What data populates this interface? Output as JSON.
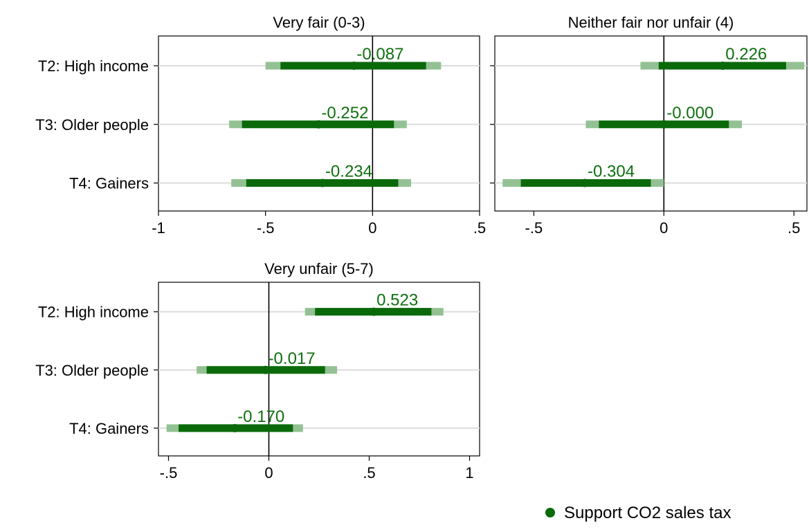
{
  "chart_data": {
    "type": "coefficient-plot",
    "categories": [
      "T2: High income",
      "T3: Older people",
      "T4: Gainers"
    ],
    "colors": {
      "point": "#0a6a0a",
      "ci_inner": "#0a6a0a",
      "ci_outer": "#93c193",
      "label": "#0f700f",
      "zero_line": "#000000",
      "grid": "#dcdcdc"
    },
    "legend": {
      "label": "Support CO2 sales tax",
      "position": "bottom-right"
    },
    "panels": [
      {
        "title": "Very fair (0-3)",
        "xlim": [
          -1,
          0.5
        ],
        "xticks": [
          -1,
          -0.5,
          0,
          0.5
        ],
        "xtick_labels": [
          "-1",
          "-.5",
          "0",
          ".5"
        ],
        "points": [
          {
            "category": "T2: High income",
            "estimate": -0.087,
            "label": "-0.087",
            "ci_inner": [
              -0.43,
              0.25
            ],
            "ci_outer": [
              -0.5,
              0.32
            ]
          },
          {
            "category": "T3: Older people",
            "estimate": -0.252,
            "label": "-0.252",
            "ci_inner": [
              -0.61,
              0.1
            ],
            "ci_outer": [
              -0.67,
              0.16
            ]
          },
          {
            "category": "T4: Gainers",
            "estimate": -0.234,
            "label": "-0.234",
            "ci_inner": [
              -0.59,
              0.12
            ],
            "ci_outer": [
              -0.66,
              0.18
            ]
          }
        ]
      },
      {
        "title": "Neither fair nor unfair (4)",
        "xlim": [
          -0.65,
          0.55
        ],
        "xticks": [
          -0.5,
          0,
          0.5
        ],
        "xtick_labels": [
          "-.5",
          "0",
          ".5"
        ],
        "points": [
          {
            "category": "T2: High income",
            "estimate": 0.226,
            "label": "0.226",
            "ci_inner": [
              -0.02,
              0.47
            ],
            "ci_outer": [
              -0.09,
              0.54
            ]
          },
          {
            "category": "T3: Older people",
            "estimate": -0.0,
            "label": "-0.000",
            "ci_inner": [
              -0.25,
              0.25
            ],
            "ci_outer": [
              -0.3,
              0.3
            ]
          },
          {
            "category": "T4: Gainers",
            "estimate": -0.304,
            "label": "-0.304",
            "ci_inner": [
              -0.55,
              -0.05
            ],
            "ci_outer": [
              -0.62,
              0.0
            ]
          }
        ]
      },
      {
        "title": "Very unfair (5-7)",
        "xlim": [
          -0.55,
          1.05
        ],
        "xticks": [
          -0.5,
          0,
          0.5,
          1
        ],
        "xtick_labels": [
          "-.5",
          "0",
          ".5",
          "1"
        ],
        "points": [
          {
            "category": "T2: High income",
            "estimate": 0.523,
            "label": "0.523",
            "ci_inner": [
              0.23,
              0.81
            ],
            "ci_outer": [
              0.18,
              0.87
            ]
          },
          {
            "category": "T3: Older people",
            "estimate": -0.017,
            "label": "-0.017",
            "ci_inner": [
              -0.31,
              0.28
            ],
            "ci_outer": [
              -0.36,
              0.34
            ]
          },
          {
            "category": "T4: Gainers",
            "estimate": -0.17,
            "label": "-0.170",
            "ci_inner": [
              -0.45,
              0.12
            ],
            "ci_outer": [
              -0.51,
              0.17
            ]
          }
        ]
      }
    ]
  }
}
